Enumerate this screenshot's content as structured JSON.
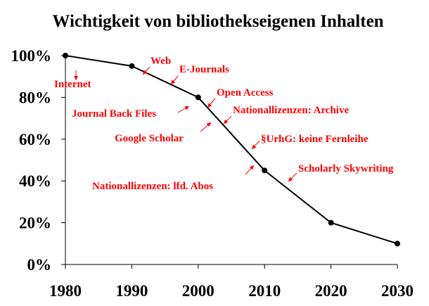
{
  "chart_data": {
    "type": "line",
    "title": "Wichtigkeit von bibliothekseigenen Inhalten",
    "xlabel": "",
    "ylabel": "",
    "x": [
      1980,
      1990,
      2000,
      2010,
      2020,
      2030
    ],
    "series": [
      {
        "values": [
          100,
          95,
          80,
          45,
          20,
          10
        ]
      }
    ],
    "xlim": [
      1980,
      2030
    ],
    "ylim": [
      0,
      100
    ],
    "x_ticks": [
      "1980",
      "1990",
      "2000",
      "2010",
      "2020",
      "2030"
    ],
    "y_ticks": [
      "0%",
      "20%",
      "40%",
      "60%",
      "80%",
      "100%"
    ],
    "grid": false,
    "line_color": "#000000",
    "annotation_color": "#ff0000",
    "annotations": [
      {
        "text": "Internet",
        "year": 1981.5,
        "value": 93
      },
      {
        "text": "Web",
        "year": 1992.5,
        "value": 92
      },
      {
        "text": "E-Journals",
        "year": 1996,
        "value": 87
      },
      {
        "text": "Journal Back Files",
        "year": 1999,
        "value": 75
      },
      {
        "text": "Open Access",
        "year": 2001.5,
        "value": 76
      },
      {
        "text": "Google Scholar",
        "year": 2001.5,
        "value": 67
      },
      {
        "text": "Nationallizenzen: Archive",
        "year": 2004,
        "value": 69
      },
      {
        "text": "§UrhG: keine Fernleihe",
        "year": 2008,
        "value": 56
      },
      {
        "text": "Nationallizenzen: lfd. Abos",
        "year": 2009,
        "value": 47
      },
      {
        "text": "Scholarly Skywriting",
        "year": 2013.5,
        "value": 40
      }
    ]
  }
}
